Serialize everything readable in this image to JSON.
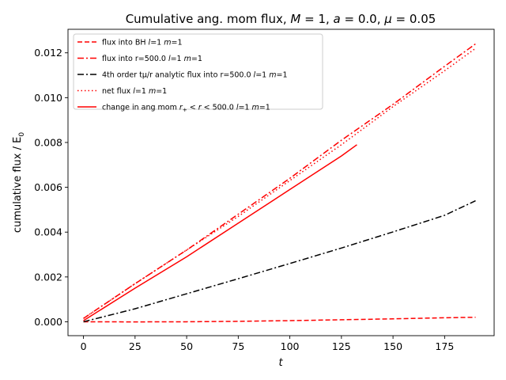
{
  "chart_data": {
    "type": "line",
    "title": "Cumulative ang. mom flux, M = 1, a = 0.0, μ = 0.05",
    "title_parts": [
      {
        "t": "Cumulative ang. mom flux, ",
        "i": false
      },
      {
        "t": "M",
        "i": true
      },
      {
        "t": " = 1, ",
        "i": false
      },
      {
        "t": "a",
        "i": true
      },
      {
        "t": " = 0.0, ",
        "i": false
      },
      {
        "t": "μ",
        "i": true
      },
      {
        "t": " = 0.05",
        "i": false
      }
    ],
    "xlabel": "t",
    "ylabel": "cumulative flux / E",
    "ylabel_sub": "0",
    "xlim": [
      -7.5,
      199
    ],
    "ylim": [
      -0.00062,
      0.01305
    ],
    "xticks": [
      0,
      25,
      50,
      75,
      100,
      125,
      150,
      175
    ],
    "xtick_labels": [
      "0",
      "25",
      "50",
      "75",
      "100",
      "125",
      "150",
      "175"
    ],
    "yticks": [
      0.0,
      0.002,
      0.004,
      0.006,
      0.008,
      0.01,
      0.012
    ],
    "ytick_labels": [
      "0.000",
      "0.002",
      "0.004",
      "0.006",
      "0.008",
      "0.010",
      "0.012"
    ],
    "grid": false,
    "legend_position": "upper-left",
    "series": [
      {
        "name": "flux into BH l=1 m=1",
        "legend_parts": [
          {
            "t": "flux into BH ",
            "i": false
          },
          {
            "t": "l",
            "i": true
          },
          {
            "t": "=1 ",
            "i": false
          },
          {
            "t": "m",
            "i": true
          },
          {
            "t": "=1",
            "i": false
          }
        ],
        "color": "#ff0000",
        "dash": "6,3",
        "x": [
          0,
          10,
          25,
          50,
          75,
          100,
          125,
          150,
          175,
          190
        ],
        "y": [
          0.0,
          -3e-06,
          -5e-06,
          0.0,
          2e-05,
          5e-05,
          9e-05,
          0.00013,
          0.00018,
          0.0002
        ]
      },
      {
        "name": "flux into r=500.0 l=1 m=1",
        "legend_parts": [
          {
            "t": "flux into r=500.0 ",
            "i": false
          },
          {
            "t": "l",
            "i": true
          },
          {
            "t": "=1 ",
            "i": false
          },
          {
            "t": "m",
            "i": true
          },
          {
            "t": "=1",
            "i": false
          }
        ],
        "color": "#ff0000",
        "dash": "8,3,2,3",
        "x": [
          0,
          25,
          50,
          75,
          100,
          125,
          150,
          175,
          190
        ],
        "y": [
          0.00015,
          0.0017,
          0.0032,
          0.0048,
          0.0064,
          0.0081,
          0.0097,
          0.0114,
          0.0124
        ]
      },
      {
        "name": "4th order tμ/r analytic flux into r=500.0 l=1 m=1",
        "legend_parts": [
          {
            "t": "4th order tμ/r analytic flux into r=500.0 ",
            "i": false
          },
          {
            "t": "l",
            "i": true
          },
          {
            "t": "=1 ",
            "i": false
          },
          {
            "t": "m",
            "i": true
          },
          {
            "t": "=1",
            "i": false
          }
        ],
        "color": "#000000",
        "dash": "8,3,2,3",
        "x": [
          0,
          25,
          50,
          75,
          100,
          125,
          150,
          175,
          190
        ],
        "y": [
          0.0,
          0.00058,
          0.00125,
          0.00192,
          0.0026,
          0.00329,
          0.00401,
          0.00475,
          0.0054
        ]
      },
      {
        "name": "net flux l=1 m=1",
        "legend_parts": [
          {
            "t": "net flux ",
            "i": false
          },
          {
            "t": "l",
            "i": true
          },
          {
            "t": "=1 ",
            "i": false
          },
          {
            "t": "m",
            "i": true
          },
          {
            "t": "=1",
            "i": false
          }
        ],
        "color": "#ff0000",
        "dash": "1.5,3",
        "x": [
          0,
          25,
          50,
          75,
          100,
          125,
          150,
          175,
          190
        ],
        "y": [
          0.00015,
          0.0017,
          0.0032,
          0.0047,
          0.0063,
          0.0079,
          0.0096,
          0.0112,
          0.0122
        ]
      },
      {
        "name": "change in ang mom r+ < r < 500.0 l=1 m=1",
        "legend_parts": [
          {
            "t": "change in ang mom ",
            "i": false
          },
          {
            "t": "r",
            "i": true
          },
          {
            "t": "+",
            "i": false,
            "sub": true
          },
          {
            "t": " < ",
            "i": false
          },
          {
            "t": "r",
            "i": true
          },
          {
            "t": " < 500.0 ",
            "i": false
          },
          {
            "t": "l",
            "i": true
          },
          {
            "t": "=1 ",
            "i": false
          },
          {
            "t": "m",
            "i": true
          },
          {
            "t": "=1",
            "i": false
          }
        ],
        "color": "#ff0000",
        "dash": "",
        "x": [
          0,
          25,
          50,
          75,
          100,
          125,
          132.5
        ],
        "y": [
          5e-05,
          0.0015,
          0.0029,
          0.0044,
          0.0059,
          0.0074,
          0.0079
        ]
      }
    ]
  }
}
